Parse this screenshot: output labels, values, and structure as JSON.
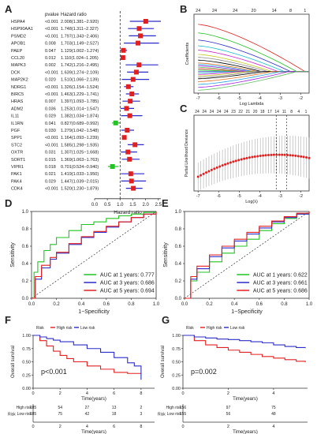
{
  "chart_data": [
    {
      "panel": "A",
      "type": "forest",
      "headers": {
        "gene": "",
        "pvalue": "pvalue",
        "hr": "Hazard ratio"
      },
      "xlabel": "Hazard ratio",
      "xticks": [
        "0.0",
        "0.5",
        "1.0",
        "1.5",
        "2.0",
        "2.5"
      ],
      "xlim": [
        0,
        2.6
      ],
      "rows": [
        {
          "gene": "HSPA4",
          "p": "<0.001",
          "hr_text": "2.008(1.381−2.920)",
          "hr": 2.008,
          "lo": 1.381,
          "hi": 2.92
        },
        {
          "gene": "HSP90AA1",
          "p": "<0.001",
          "hr_text": "1.748(1.311−2.327)",
          "hr": 1.748,
          "lo": 1.311,
          "hi": 2.327
        },
        {
          "gene": "PSMD2",
          "p": "<0.001",
          "hr_text": "1.797(1.343−2.406)",
          "hr": 1.797,
          "lo": 1.343,
          "hi": 2.406
        },
        {
          "gene": "APOB1",
          "p": "0.008",
          "hr_text": "1.703(1.149−2.527)",
          "hr": 1.703,
          "lo": 1.149,
          "hi": 2.527
        },
        {
          "gene": "PAEP",
          "p": "0.047",
          "hr_text": "1.129(1.002−1.274)",
          "hr": 1.129,
          "lo": 1.002,
          "hi": 1.274
        },
        {
          "gene": "CCL20",
          "p": "0.012",
          "hr_text": "1.110(1.024−1.205)",
          "hr": 1.11,
          "lo": 1.024,
          "hi": 1.205
        },
        {
          "gene": "MAPK3",
          "p": "0.002",
          "hr_text": "1.742(1.216−2.495)",
          "hr": 1.742,
          "lo": 1.216,
          "hi": 2.495
        },
        {
          "gene": "DCK",
          "p": "<0.001",
          "hr_text": "1.639(1.274−2.109)",
          "hr": 1.639,
          "lo": 1.274,
          "hi": 2.109
        },
        {
          "gene": "MAP2K2",
          "p": "0.020",
          "hr_text": "1.510(1.066−2.139)",
          "hr": 1.51,
          "lo": 1.066,
          "hi": 2.139
        },
        {
          "gene": "NDRG1",
          "p": "<0.001",
          "hr_text": "1.326(1.154−1.524)",
          "hr": 1.326,
          "lo": 1.154,
          "hi": 1.524
        },
        {
          "gene": "BIRC5",
          "p": "<0.001",
          "hr_text": "1.463(1.229−1.741)",
          "hr": 1.463,
          "lo": 1.229,
          "hi": 1.741
        },
        {
          "gene": "HRAS",
          "p": "0.007",
          "hr_text": "1.397(1.093−1.785)",
          "hr": 1.397,
          "lo": 1.093,
          "hi": 1.785
        },
        {
          "gene": "ADM2",
          "p": "0.036",
          "hr_text": "1.253(1.014−1.547)",
          "hr": 1.253,
          "lo": 1.014,
          "hi": 1.547
        },
        {
          "gene": "IL11",
          "p": "0.029",
          "hr_text": "1.382(1.034−1.874)",
          "hr": 1.382,
          "lo": 1.034,
          "hi": 1.874
        },
        {
          "gene": "IL1RN",
          "p": "0.041",
          "hr_text": "0.827(0.689−0.992)",
          "hr": 0.827,
          "lo": 0.689,
          "hi": 0.992
        },
        {
          "gene": "PGF",
          "p": "0.030",
          "hr_text": "1.279(1.042−1.548)",
          "hr": 1.279,
          "lo": 1.042,
          "hi": 1.548
        },
        {
          "gene": "SPP1",
          "p": "<0.001",
          "hr_text": "1.164(1.093−1.239)",
          "hr": 1.164,
          "lo": 1.093,
          "hi": 1.239
        },
        {
          "gene": "STC2",
          "p": "<0.001",
          "hr_text": "1.585(1.298−1.935)",
          "hr": 1.585,
          "lo": 1.298,
          "hi": 1.935
        },
        {
          "gene": "OXTR",
          "p": "0.031",
          "hr_text": "1.307(1.025−1.668)",
          "hr": 1.307,
          "lo": 1.025,
          "hi": 1.668
        },
        {
          "gene": "SORT1",
          "p": "0.015",
          "hr_text": "1.369(1.063−1.763)",
          "hr": 1.369,
          "lo": 1.063,
          "hi": 1.763
        },
        {
          "gene": "VIPR1",
          "p": "0.018",
          "hr_text": "0.701(0.524−0.940)",
          "hr": 0.701,
          "lo": 0.524,
          "hi": 0.94
        },
        {
          "gene": "PAK1",
          "p": "0.021",
          "hr_text": "1.419(1.033−1.950)",
          "hr": 1.419,
          "lo": 1.033,
          "hi": 1.95
        },
        {
          "gene": "PAK4",
          "p": "0.029",
          "hr_text": "1.447(1.039−2.015)",
          "hr": 1.447,
          "lo": 1.039,
          "hi": 2.015
        },
        {
          "gene": "CDK4",
          "p": "<0.001",
          "hr_text": "1.520(1.230−1.879)",
          "hr": 1.52,
          "lo": 1.23,
          "hi": 1.879
        }
      ]
    },
    {
      "panel": "B",
      "type": "line",
      "xlabel": "Log Lambda",
      "ylabel": "Coefficients",
      "xticks": [
        "-7",
        "-6",
        "-5",
        "-4",
        "-3",
        "-2"
      ],
      "xlim": [
        -7.2,
        -1.6
      ],
      "ylim": [
        -0.15,
        0.4
      ],
      "top_ticks": [
        "24",
        "24",
        "24",
        "20",
        "14",
        "8",
        "1"
      ],
      "top_tick_x": [
        -7,
        -6.2,
        -5.2,
        -4.3,
        -3.3,
        -2.5,
        -1.8
      ]
    },
    {
      "panel": "C",
      "type": "scatter",
      "xlabel": "Log(λ)",
      "ylabel": "Partial Likelihood Deviance",
      "xticks": [
        "-7",
        "-6",
        "-5",
        "-4",
        "-3",
        "-2"
      ],
      "xlim": [
        -7.2,
        -1.6
      ],
      "top_ticks": [
        "24",
        "24",
        "24",
        "24",
        "24",
        "23",
        "22",
        "21",
        "20",
        "18",
        "17",
        "14",
        "11",
        "8",
        "4",
        "1"
      ],
      "vlines": [
        -3.2,
        -2.7
      ]
    },
    {
      "panel": "D",
      "type": "line",
      "xlabel": "1−Specificity",
      "ylabel": "Sensitivity",
      "xticks": [
        "0.0",
        "0.2",
        "0.4",
        "0.6",
        "0.8",
        "1.0"
      ],
      "yticks": [
        "0.0",
        "0.2",
        "0.4",
        "0.6",
        "0.8",
        "1.0"
      ],
      "series": [
        {
          "name": "AUC at 1 years: 0.777",
          "color": "#22c322",
          "x": [
            0,
            0.02,
            0.05,
            0.1,
            0.15,
            0.2,
            0.3,
            0.4,
            0.5,
            0.6,
            0.7,
            0.8,
            0.9,
            1
          ],
          "y": [
            0,
            0.3,
            0.42,
            0.55,
            0.62,
            0.7,
            0.78,
            0.85,
            0.88,
            0.92,
            0.95,
            0.97,
            0.99,
            1
          ]
        },
        {
          "name": "AUC at 3 years: 0.686",
          "color": "#2c2cc8",
          "x": [
            0,
            0.03,
            0.08,
            0.15,
            0.2,
            0.3,
            0.4,
            0.5,
            0.6,
            0.7,
            0.8,
            0.9,
            1
          ],
          "y": [
            0,
            0.22,
            0.35,
            0.45,
            0.52,
            0.62,
            0.7,
            0.76,
            0.82,
            0.88,
            0.93,
            0.97,
            1
          ]
        },
        {
          "name": "AUC at 5 years: 0.694",
          "color": "#e02020",
          "x": [
            0,
            0.03,
            0.08,
            0.15,
            0.2,
            0.3,
            0.4,
            0.5,
            0.6,
            0.7,
            0.8,
            0.9,
            1
          ],
          "y": [
            0,
            0.25,
            0.38,
            0.47,
            0.53,
            0.63,
            0.71,
            0.77,
            0.83,
            0.88,
            0.93,
            0.97,
            1
          ]
        }
      ]
    },
    {
      "panel": "E",
      "type": "line",
      "xlabel": "1−Specificity",
      "ylabel": "Sensitivity",
      "xticks": [
        "0.0",
        "0.2",
        "0.4",
        "0.6",
        "0.8",
        "1.0"
      ],
      "yticks": [
        "0.0",
        "0.2",
        "0.4",
        "0.6",
        "0.8",
        "1.0"
      ],
      "series": [
        {
          "name": "AUC at 1 years: 0.622",
          "color": "#22c322",
          "x": [
            0,
            0.05,
            0.1,
            0.2,
            0.3,
            0.4,
            0.5,
            0.6,
            0.7,
            0.8,
            0.9,
            1
          ],
          "y": [
            0,
            0.2,
            0.3,
            0.42,
            0.52,
            0.6,
            0.68,
            0.78,
            0.86,
            0.92,
            0.97,
            1
          ]
        },
        {
          "name": "AUC at 3 years: 0.661",
          "color": "#2c2cc8",
          "x": [
            0,
            0.05,
            0.1,
            0.2,
            0.3,
            0.4,
            0.5,
            0.6,
            0.7,
            0.8,
            0.9,
            1
          ],
          "y": [
            0,
            0.22,
            0.34,
            0.48,
            0.58,
            0.66,
            0.74,
            0.81,
            0.88,
            0.93,
            0.97,
            1
          ]
        },
        {
          "name": "AUC at 5 years: 0.686",
          "color": "#e02020",
          "x": [
            0,
            0.05,
            0.1,
            0.2,
            0.3,
            0.4,
            0.5,
            0.6,
            0.7,
            0.8,
            0.9,
            1
          ],
          "y": [
            0,
            0.25,
            0.37,
            0.5,
            0.6,
            0.68,
            0.76,
            0.83,
            0.89,
            0.94,
            0.98,
            1
          ]
        }
      ]
    },
    {
      "panel": "F",
      "type": "line",
      "xlabel": "Time(years)",
      "ylabel": "Overall survival",
      "xticks": [
        "0",
        "2",
        "4",
        "6",
        "8"
      ],
      "yticks": [
        "0.00",
        "0.25",
        "0.50",
        "0.75",
        "1.00"
      ],
      "xlim": [
        0,
        9
      ],
      "legend_title": "Risk",
      "pvalue": "p<0.001",
      "series": [
        {
          "name": "High risk",
          "color": "#e02020",
          "x": [
            0,
            0.5,
            1,
            1.5,
            2,
            2.5,
            3,
            4,
            5,
            6,
            7,
            8
          ],
          "y": [
            1,
            0.9,
            0.8,
            0.7,
            0.62,
            0.56,
            0.5,
            0.42,
            0.36,
            0.3,
            0.28,
            0.27
          ]
        },
        {
          "name": "Low risk",
          "color": "#2c2cc8",
          "x": [
            0,
            0.5,
            1,
            1.5,
            2,
            3,
            4,
            5,
            6,
            7,
            7.5,
            8
          ],
          "y": [
            1,
            0.97,
            0.94,
            0.91,
            0.88,
            0.82,
            0.75,
            0.68,
            0.58,
            0.48,
            0.42,
            0.16
          ]
        }
      ],
      "risk_table": {
        "title": "Risk",
        "times": [
          "0",
          "2",
          "4",
          "6",
          "8"
        ],
        "rows": [
          {
            "name": "High risk",
            "color": "#e02020",
            "counts": [
              "185",
              "54",
              "27",
              "13",
              "2"
            ]
          },
          {
            "name": "Low risk",
            "color": "#2c2cc8",
            "counts": [
              "185",
              "75",
              "42",
              "18",
              "3"
            ]
          }
        ]
      }
    },
    {
      "panel": "G",
      "type": "line",
      "xlabel": "Time(years)",
      "ylabel": "Overall survival",
      "xticks": [
        "0",
        "2",
        "4"
      ],
      "yticks": [
        "0.00",
        "0.25",
        "0.50",
        "0.75",
        "1.00"
      ],
      "xlim": [
        0,
        5.5
      ],
      "legend_title": "Risk",
      "pvalue": "p=0.002",
      "series": [
        {
          "name": "High risk",
          "color": "#e02020",
          "x": [
            0,
            0.5,
            1,
            1.5,
            2,
            2.5,
            3,
            3.5,
            4,
            4.5,
            5,
            5.4
          ],
          "y": [
            1,
            0.9,
            0.82,
            0.77,
            0.72,
            0.68,
            0.64,
            0.6,
            0.57,
            0.54,
            0.51,
            0.49
          ]
        },
        {
          "name": "Low risk",
          "color": "#2c2cc8",
          "x": [
            0,
            0.5,
            1,
            1.5,
            2,
            2.5,
            3,
            3.5,
            4,
            4.5,
            5,
            5.4
          ],
          "y": [
            1,
            0.97,
            0.95,
            0.93,
            0.92,
            0.9,
            0.88,
            0.86,
            0.82,
            0.79,
            0.77,
            0.76
          ]
        }
      ],
      "risk_table": {
        "title": "Risk",
        "times": [
          "0",
          "2",
          "4"
        ],
        "rows": [
          {
            "name": "High risk",
            "color": "#e02020",
            "counts": [
              "156",
              "97",
              "75"
            ]
          },
          {
            "name": "Low risk",
            "color": "#2c2cc8",
            "counts": [
              "155",
              "56",
              "48"
            ]
          }
        ]
      }
    }
  ]
}
